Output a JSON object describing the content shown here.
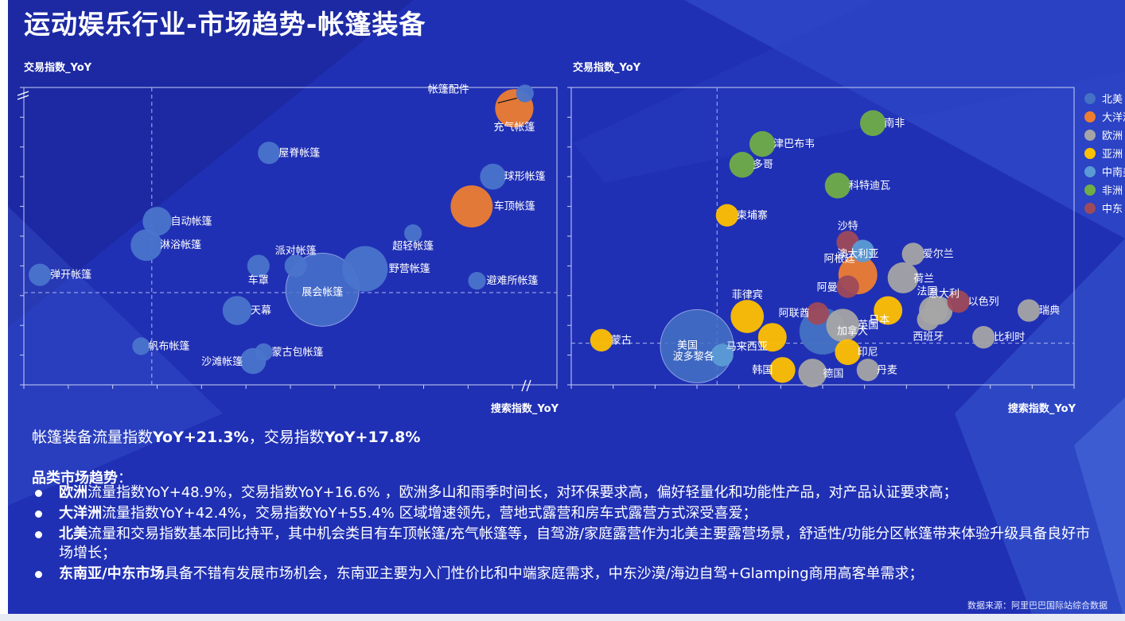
{
  "page": {
    "title": "运动娱乐行业-市场趋势-帐篷装备",
    "summary": {
      "prefix": "帐篷装备流量指数",
      "part1": "YoY+21.3%",
      "mid": "，交易指数",
      "part2": "YoY+17.8%"
    },
    "section_title": {
      "bold": "品类市场趋势",
      "rest": "："
    },
    "bullets": [
      {
        "bold": "欧洲",
        "text": "流量指数YoY+48.9%，交易指数YoY+16.6% ，欧洲多山和雨季时间长，对环保要求高，偏好轻量化和功能性产品，对产品认证要求高；"
      },
      {
        "bold": "大洋洲",
        "text": "流量指数YoY+42.4%，交易指数YoY+55.4% 区域增速领先，营地式露营和房车式露营方式深受喜爱；"
      },
      {
        "bold": "北美",
        "text": "流量和交易指数基本同比持平，其中机会类目有车顶帐篷/充气帐篷等，自驾游/家庭露营作为北美主要露营场景，舒适性/功能分区帐篷带来体验升级具备良好市场增长；"
      },
      {
        "bold": "东南亚/中东市场",
        "text": "具备不错有发展市场机会，东南亚主要为入门性价比和中端家庭需求，中东沙漠/海边自驾+Glamping商用高客单需求；"
      }
    ],
    "source": "数据来源：阿里巴巴国际站综合数据"
  },
  "chart_data": [
    {
      "type": "scatter",
      "subtype": "bubble",
      "title": "",
      "ylabel": "交易指数_YoY",
      "xlabel": "搜索指数_YoY",
      "xlim": [
        0,
        100
      ],
      "ylim": [
        0,
        100
      ],
      "reference_lines": {
        "x": 24,
        "y": 31
      },
      "axis_breaks": {
        "x_end": true,
        "y_top": true
      },
      "ticks": "unlabeled",
      "points": [
        {
          "label": "帐篷配件",
          "x": 94,
          "y": 98,
          "size": 1
        },
        {
          "label": "充气帐篷",
          "x": 92,
          "y": 93,
          "size": 8
        },
        {
          "label": "屋脊帐篷",
          "x": 46,
          "y": 78,
          "size": 2
        },
        {
          "label": "球形帐篷",
          "x": 88,
          "y": 70,
          "size": 3
        },
        {
          "label": "车顶帐篷",
          "x": 84,
          "y": 60,
          "size": 10
        },
        {
          "label": "自动帐篷",
          "x": 25,
          "y": 55,
          "size": 4
        },
        {
          "label": "淋浴帐篷",
          "x": 23,
          "y": 47,
          "size": 5
        },
        {
          "label": "超轻帐篷",
          "x": 73,
          "y": 51,
          "size": 1
        },
        {
          "label": "弹开帐篷",
          "x": 3,
          "y": 37,
          "size": 2
        },
        {
          "label": "派对帐篷",
          "x": 51,
          "y": 40,
          "size": 2
        },
        {
          "label": "车罩",
          "x": 44,
          "y": 40,
          "size": 2
        },
        {
          "label": "野营帐篷",
          "x": 64,
          "y": 39,
          "size": 12
        },
        {
          "label": "避难所帐篷",
          "x": 85,
          "y": 35,
          "size": 1
        },
        {
          "label": "展会帐篷",
          "x": 56,
          "y": 32,
          "size": 35
        },
        {
          "label": "天幕",
          "x": 40,
          "y": 25,
          "size": 4
        },
        {
          "label": "帆布帐篷",
          "x": 22,
          "y": 13,
          "size": 1
        },
        {
          "label": "蒙古包帐篷",
          "x": 45,
          "y": 11,
          "size": 1
        },
        {
          "label": "沙滩帐篷",
          "x": 43,
          "y": 8,
          "size": 3
        }
      ]
    },
    {
      "type": "scatter",
      "subtype": "bubble",
      "title": "",
      "ylabel": "交易指数_YoY",
      "xlabel": "搜索指数_YoY",
      "xlim": [
        0,
        100
      ],
      "ylim": [
        0,
        100
      ],
      "reference_lines": {
        "x": 29,
        "y": 14
      },
      "ticks": "unlabeled",
      "legend": [
        {
          "name": "北美",
          "color": "#4472c4"
        },
        {
          "name": "大洋洲",
          "color": "#ed7d31"
        },
        {
          "name": "欧洲",
          "color": "#a5a5a5"
        },
        {
          "name": "亚洲",
          "color": "#ffc000"
        },
        {
          "name": "中南美",
          "color": "#5b9bd5"
        },
        {
          "name": "非洲",
          "color": "#70ad47"
        },
        {
          "name": "中东",
          "color": "#9e4a5a"
        }
      ],
      "points": [
        {
          "label": "南非",
          "region": "非洲",
          "x": 60,
          "y": 88,
          "size": 3
        },
        {
          "label": "津巴布韦",
          "region": "非洲",
          "x": 38,
          "y": 81,
          "size": 3
        },
        {
          "label": "多哥",
          "region": "非洲",
          "x": 34,
          "y": 74,
          "size": 3
        },
        {
          "label": "科特迪瓦",
          "region": "非洲",
          "x": 53,
          "y": 67,
          "size": 3
        },
        {
          "label": "柬埔寨",
          "region": "亚洲",
          "x": 31,
          "y": 57,
          "size": 2
        },
        {
          "label": "沙特",
          "region": "中东",
          "x": 55,
          "y": 48,
          "size": 2
        },
        {
          "label": "阿根廷",
          "region": "中南美",
          "x": 58,
          "y": 45,
          "size": 2
        },
        {
          "label": "爱尔兰",
          "region": "欧洲",
          "x": 68,
          "y": 44,
          "size": 2
        },
        {
          "label": "澳大利亚",
          "region": "大洋洲",
          "x": 57,
          "y": 37,
          "size": 9
        },
        {
          "label": "荷兰",
          "region": "欧洲",
          "x": 66,
          "y": 36,
          "size": 5
        },
        {
          "label": "阿曼",
          "region": "中东",
          "x": 55,
          "y": 33,
          "size": 2
        },
        {
          "label": "法国",
          "region": "欧洲",
          "x": 73,
          "y": 25,
          "size": 4
        },
        {
          "label": "以色列",
          "region": "中东",
          "x": 77,
          "y": 28,
          "size": 2
        },
        {
          "label": "意大利",
          "region": "欧洲",
          "x": 72,
          "y": 25,
          "size": 4
        },
        {
          "label": "阿联酋",
          "region": "中东",
          "x": 49,
          "y": 24,
          "size": 2
        },
        {
          "label": "日本",
          "region": "亚洲",
          "x": 63,
          "y": 25,
          "size": 4
        },
        {
          "label": "瑞典",
          "region": "欧洲",
          "x": 91,
          "y": 25,
          "size": 2
        },
        {
          "label": "菲律宾",
          "region": "亚洲",
          "x": 35,
          "y": 23,
          "size": 6
        },
        {
          "label": "西班牙",
          "region": "欧洲",
          "x": 71,
          "y": 22,
          "size": 2
        },
        {
          "label": "加拿大",
          "region": "北美",
          "x": 50,
          "y": 18,
          "size": 14
        },
        {
          "label": "英国",
          "region": "欧洲",
          "x": 54,
          "y": 20,
          "size": 6
        },
        {
          "label": "蒙古",
          "region": "亚洲",
          "x": 6,
          "y": 15,
          "size": 2
        },
        {
          "label": "比利时",
          "region": "欧洲",
          "x": 82,
          "y": 16,
          "size": 2
        },
        {
          "label": "马来西亚",
          "region": "亚洲",
          "x": 40,
          "y": 16,
          "size": 4
        },
        {
          "label": "美国",
          "region": "北美",
          "x": 25,
          "y": 13,
          "size": 40
        },
        {
          "label": "波多黎各",
          "region": "中南美",
          "x": 30,
          "y": 10,
          "size": 2
        },
        {
          "label": "印尼",
          "region": "亚洲",
          "x": 55,
          "y": 11,
          "size": 3
        },
        {
          "label": "韩国",
          "region": "亚洲",
          "x": 42,
          "y": 5,
          "size": 3
        },
        {
          "label": "德国",
          "region": "欧洲",
          "x": 48,
          "y": 4,
          "size": 4
        },
        {
          "label": "丹麦",
          "region": "欧洲",
          "x": 59,
          "y": 5,
          "size": 2
        }
      ]
    }
  ]
}
